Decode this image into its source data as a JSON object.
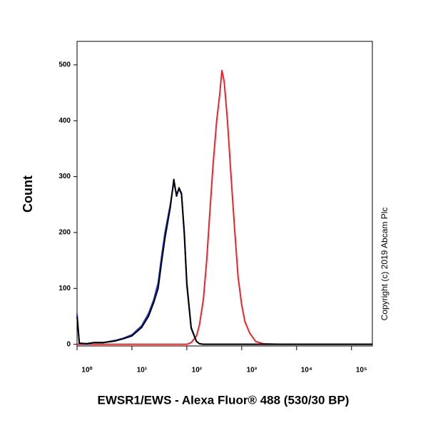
{
  "chart_data": {
    "type": "line",
    "y_label": "Count",
    "x_label": "EWSR1/EWS - Alexa Fluor® 488 (530/30 BP)",
    "annotation": "Copyright (c) 2019 Abcam Plc",
    "x_scale": "log",
    "x": [
      1,
      1.1,
      1.5,
      2,
      3,
      5,
      7,
      10,
      15,
      20,
      25,
      30,
      35,
      40,
      50,
      58,
      65,
      72,
      80,
      90,
      100,
      120,
      150,
      170,
      200,
      230,
      260,
      300,
      350,
      400,
      435,
      480,
      550,
      640,
      750,
      860,
      1000,
      1150,
      1400,
      1800,
      2500,
      5000,
      100000,
      240000
    ],
    "series": [
      {
        "color": "#e8252a",
        "values": [
          0,
          0,
          0,
          0,
          0,
          0,
          0,
          0,
          0,
          0,
          0,
          0,
          0,
          0,
          0,
          0,
          0,
          0,
          0,
          0,
          0,
          3,
          15,
          35,
          80,
          150,
          230,
          320,
          400,
          450,
          490,
          470,
          400,
          300,
          200,
          120,
          70,
          40,
          20,
          5,
          1,
          0,
          0,
          0
        ]
      },
      {
        "color": "#1f3fd0",
        "values": [
          55,
          2,
          1,
          3,
          3,
          7,
          11,
          17,
          33,
          55,
          80,
          110,
          160,
          200,
          250,
          290,
          268,
          278,
          268,
          195,
          105,
          28,
          5,
          1,
          0,
          0,
          0,
          0,
          0,
          0,
          0,
          0,
          0,
          0,
          0,
          0,
          0,
          0,
          0,
          0,
          0,
          0,
          0,
          0
        ]
      },
      {
        "color": "#000000",
        "values": [
          50,
          2,
          1,
          3,
          3,
          6,
          10,
          15,
          30,
          50,
          75,
          100,
          150,
          190,
          245,
          295,
          265,
          280,
          270,
          200,
          110,
          30,
          5,
          1,
          0,
          0,
          0,
          0,
          0,
          0,
          0,
          0,
          0,
          0,
          0,
          0,
          0,
          0,
          0,
          0,
          0,
          0,
          0,
          0
        ]
      }
    ],
    "xlim": [
      1,
      240000
    ],
    "xticks": [
      {
        "value": 1,
        "label": "10⁰"
      },
      {
        "value": 10,
        "label": "10¹"
      },
      {
        "value": 100,
        "label": "10²"
      },
      {
        "value": 1000,
        "label": "10³"
      },
      {
        "value": 10000,
        "label": "10⁴"
      },
      {
        "value": 100000,
        "label": "10⁵"
      }
    ],
    "ylim": [
      -3,
      542
    ],
    "yticks": [
      0,
      100,
      200,
      300,
      400,
      500
    ]
  }
}
